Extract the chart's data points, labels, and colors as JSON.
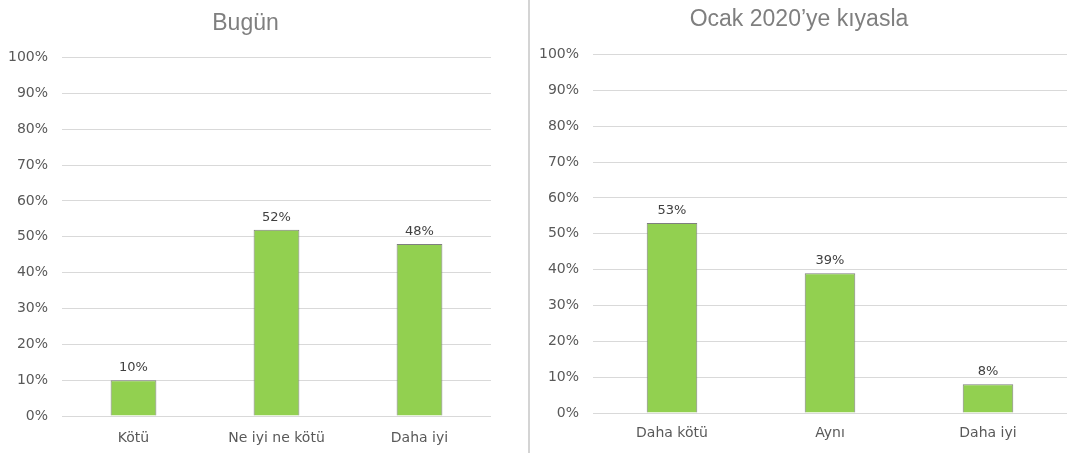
{
  "chart_data": [
    {
      "type": "bar",
      "title": "Bugün",
      "categories": [
        "Kötü",
        "Ne iyi ne kötü",
        "Daha iyi"
      ],
      "values": [
        10,
        52,
        48
      ],
      "value_labels": [
        "10%",
        "52%",
        "48%"
      ],
      "color": "#92d050",
      "ylim": [
        0,
        100
      ],
      "yticks": [
        {
          "value": 0,
          "label": "0%"
        },
        {
          "value": 10,
          "label": "10%"
        },
        {
          "value": 20,
          "label": "20%"
        },
        {
          "value": 30,
          "label": "30%"
        },
        {
          "value": 40,
          "label": "40%"
        },
        {
          "value": 50,
          "label": "50%"
        },
        {
          "value": 60,
          "label": "60%"
        },
        {
          "value": 70,
          "label": "70%"
        },
        {
          "value": 80,
          "label": "80%"
        },
        {
          "value": 90,
          "label": "90%"
        },
        {
          "value": 100,
          "label": "100%"
        }
      ],
      "grid": "y"
    },
    {
      "type": "bar",
      "title": "Ocak 2020’ye kıyasla",
      "categories": [
        "Daha kötü",
        "Aynı",
        "Daha iyi"
      ],
      "values": [
        53,
        39,
        8
      ],
      "value_labels": [
        "53%",
        "39%",
        "8%"
      ],
      "color": "#92d050",
      "ylim": [
        0,
        100
      ],
      "yticks": [
        {
          "value": 0,
          "label": "0%"
        },
        {
          "value": 10,
          "label": "10%"
        },
        {
          "value": 20,
          "label": "20%"
        },
        {
          "value": 30,
          "label": "30%"
        },
        {
          "value": 40,
          "label": "40%"
        },
        {
          "value": 50,
          "label": "50%"
        },
        {
          "value": 60,
          "label": "60%"
        },
        {
          "value": 70,
          "label": "70%"
        },
        {
          "value": 80,
          "label": "80%"
        },
        {
          "value": 90,
          "label": "90%"
        },
        {
          "value": 100,
          "label": "100%"
        }
      ],
      "grid": "y"
    }
  ]
}
